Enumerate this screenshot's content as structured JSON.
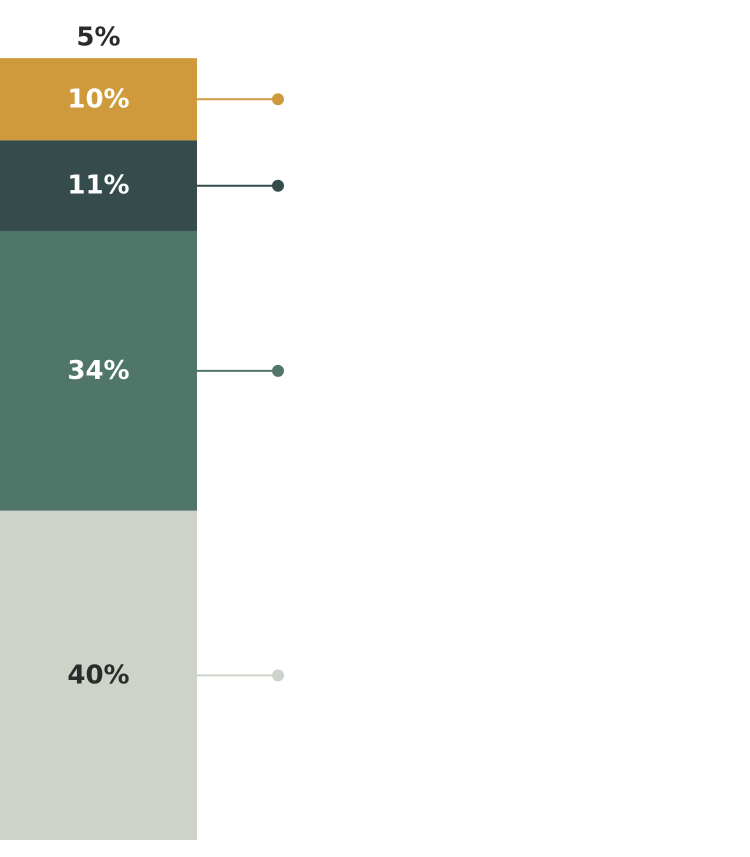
{
  "chart_data": {
    "type": "bar",
    "orientation": "stacked-vertical",
    "segments": [
      {
        "label": "5%",
        "value": 5,
        "color": "#ffffff",
        "text_color": "#2b2b2b",
        "category": "",
        "connector": false
      },
      {
        "label": "10%",
        "value": 10,
        "color": "#cf9a3b",
        "text_color": "#ffffff",
        "category": "",
        "connector": true
      },
      {
        "label": "11%",
        "value": 11,
        "color": "#354b4c",
        "text_color": "#ffffff",
        "category": "",
        "connector": true
      },
      {
        "label": "34%",
        "value": 34,
        "color": "#4f7669",
        "text_color": "#ffffff",
        "category": "",
        "connector": true
      },
      {
        "label": "40%",
        "value": 40,
        "color": "#cdd3c8",
        "text_color": "#2b2b2b",
        "category": "",
        "connector": true
      }
    ],
    "total": 100,
    "title": "",
    "legend": "connector-labels-right"
  }
}
